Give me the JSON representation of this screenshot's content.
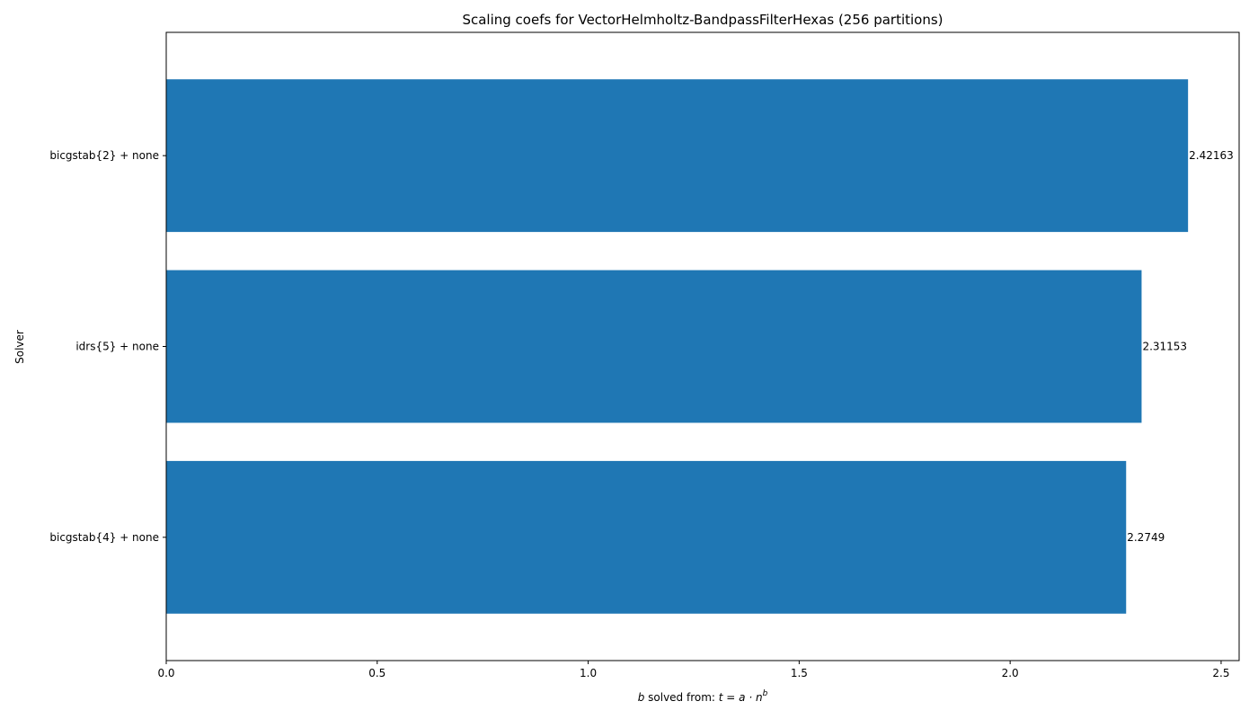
{
  "chart_data": {
    "type": "bar",
    "orientation": "horizontal",
    "title": "Scaling coefs for VectorHelmholtz-BandpassFilterHexas (256 partitions)",
    "xlabel": {
      "prefix": "b",
      "middle": " solved from: ",
      "formula": "t = a · n",
      "exponent": "b"
    },
    "ylabel": "Solver",
    "categories": [
      "bicgstab{2} + none",
      "idrs{5} + none",
      "bicgstab{4} + none"
    ],
    "values": [
      2.42163,
      2.31153,
      2.2749
    ],
    "value_labels": [
      "2.42163",
      "2.31153",
      "2.2749"
    ],
    "xlim": [
      0,
      2.5427
    ],
    "xticks": [
      0.0,
      0.5,
      1.0,
      1.5,
      2.0,
      2.5
    ],
    "xtick_labels": [
      "0.0",
      "0.5",
      "1.0",
      "1.5",
      "2.0",
      "2.5"
    ],
    "bar_color": "#1f77b4",
    "grid": false,
    "legend": "none"
  }
}
